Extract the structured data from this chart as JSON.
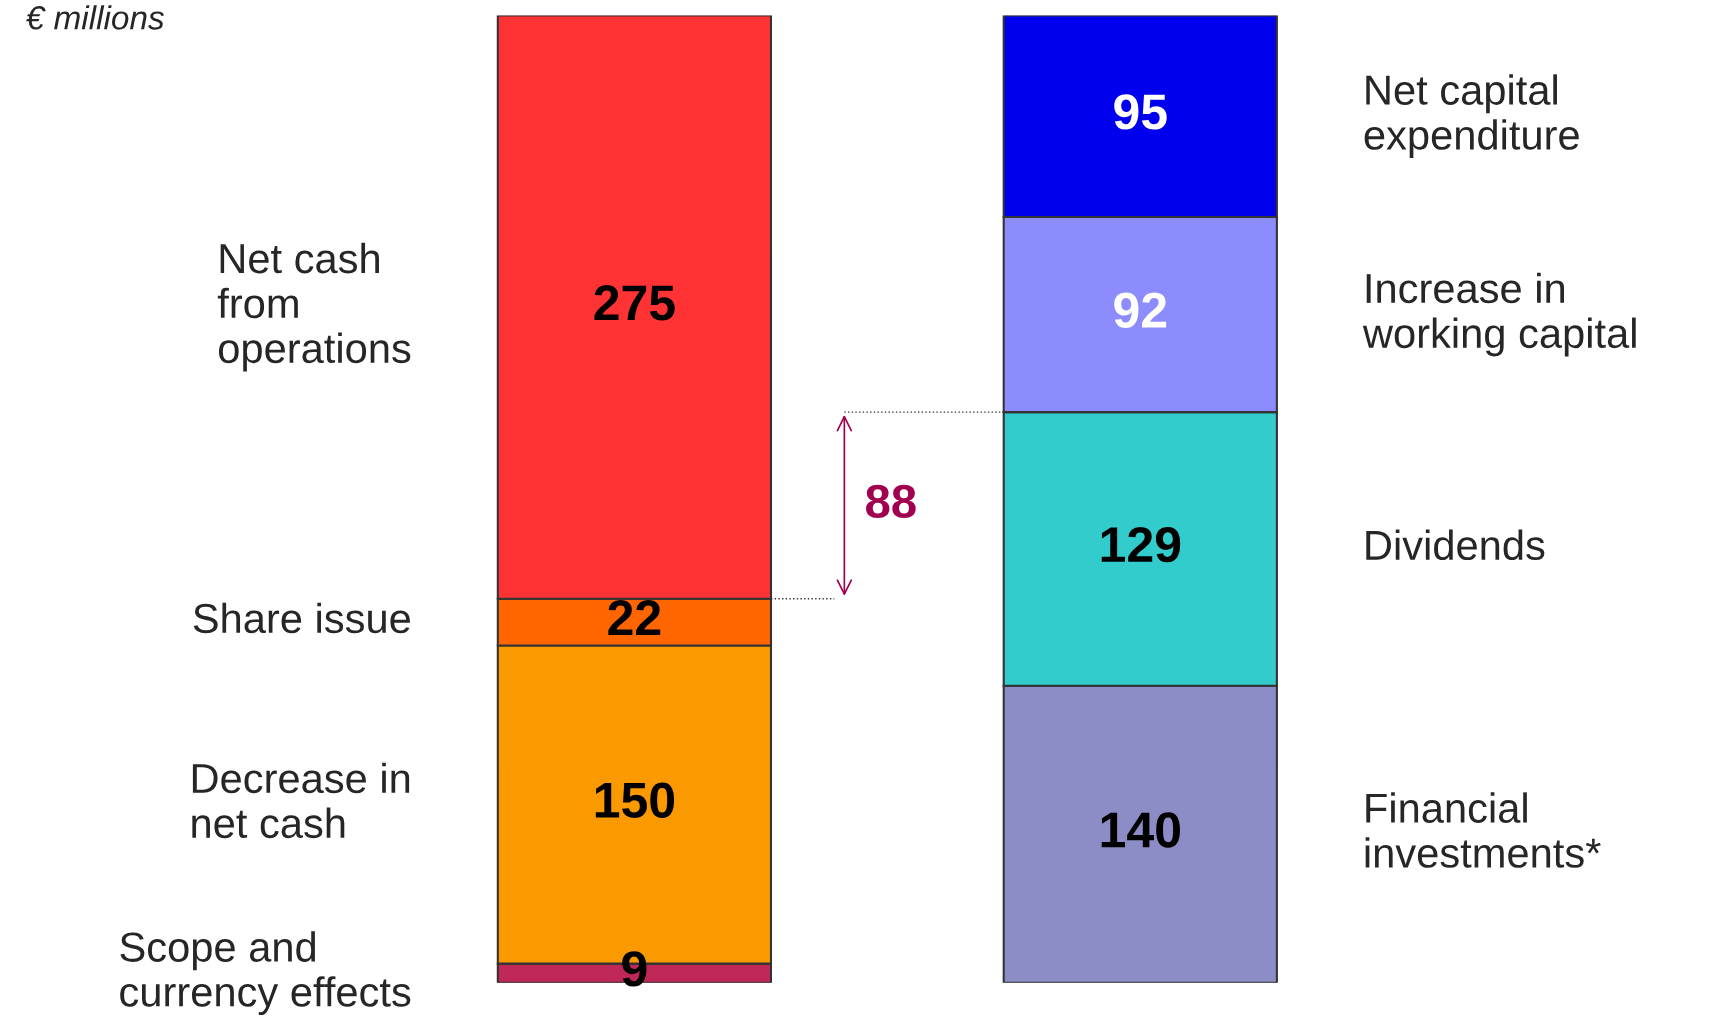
{
  "chart_data": {
    "type": "bar",
    "stacked": true,
    "data_labels": true,
    "categories": [
      null,
      null
    ],
    "series": [
      {
        "name": "Scope and\ncurrency effects",
        "color": "#c02858",
        "values": [
          9,
          null
        ]
      },
      {
        "name": "Decrease in\nnet cash",
        "color": "#fa9a00",
        "values": [
          150,
          null
        ]
      },
      {
        "name": "Share issue",
        "color": "#ff6600",
        "values": [
          22,
          null
        ]
      },
      {
        "name": "Net cash\nfrom\noperations",
        "color": "#ff3333",
        "values": [
          275,
          null
        ]
      },
      {
        "name": "Financial\ninvestments*",
        "color": "#8c8cc6",
        "values": [
          null,
          140
        ]
      },
      {
        "name": "Dividends",
        "color": "#33cccc",
        "values": [
          null,
          129
        ]
      },
      {
        "name": "Increase in\nworking capital",
        "color": "#8c8cff",
        "values": [
          null,
          92
        ]
      },
      {
        "name": "Net capital\nexpenditure",
        "color": "#0000ee",
        "values": [
          null,
          95
        ]
      }
    ],
    "annotations": [
      "€ millions",
      "88"
    ]
  }
}
